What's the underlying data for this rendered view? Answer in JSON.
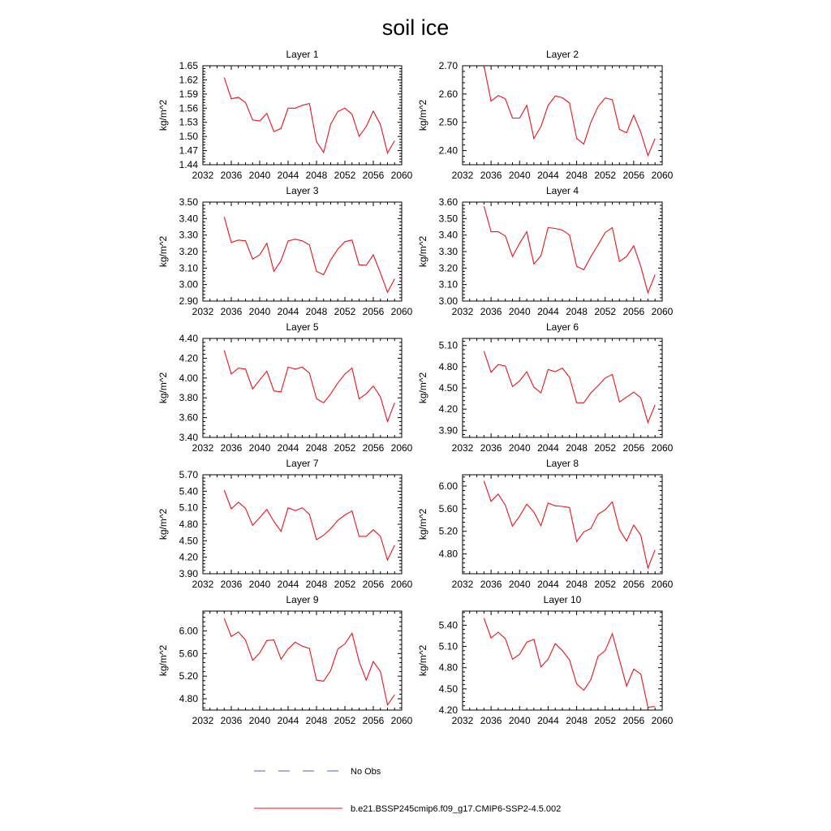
{
  "figure": {
    "title": "soil ice"
  },
  "legend": {
    "entries": [
      {
        "label": "No Obs",
        "color": "#4a5fd0",
        "style": "dashed"
      },
      {
        "label": "b.e21.BSSP245cmip6.f09_g17.CMIP6-SSP2-4.5.002",
        "color": "#e8141c",
        "style": "solid"
      }
    ]
  },
  "chart_data": [
    {
      "type": "line",
      "title": "Layer 1",
      "ylabel": "kg/m^2",
      "xlim": [
        2032,
        2060
      ],
      "xticks": [
        2032,
        2036,
        2040,
        2044,
        2048,
        2052,
        2056,
        2060
      ],
      "ylim": [
        1.44,
        1.65
      ],
      "yticks": [
        "1.44",
        "1.47",
        "1.50",
        "1.53",
        "1.56",
        "1.59",
        "1.62",
        "1.65"
      ],
      "series": [
        {
          "color": "#e8141c",
          "x": [
            2035,
            2036,
            2037,
            2038,
            2039,
            2040,
            2041,
            2042,
            2043,
            2044,
            2045,
            2046,
            2047,
            2048,
            2049,
            2050,
            2051,
            2052,
            2053,
            2054,
            2055,
            2056,
            2057,
            2058,
            2059
          ],
          "y": [
            1.625,
            1.58,
            1.583,
            1.572,
            1.535,
            1.533,
            1.549,
            1.51,
            1.517,
            1.56,
            1.56,
            1.566,
            1.57,
            1.489,
            1.466,
            1.526,
            1.553,
            1.56,
            1.547,
            1.5,
            1.521,
            1.554,
            1.525,
            1.465,
            1.491
          ]
        }
      ]
    },
    {
      "type": "line",
      "title": "Layer 2",
      "ylabel": "kg/m^2",
      "xlim": [
        2032,
        2060
      ],
      "xticks": [
        2032,
        2036,
        2040,
        2044,
        2048,
        2052,
        2056,
        2060
      ],
      "ylim": [
        2.35,
        2.7
      ],
      "yticks": [
        "2.40",
        "2.50",
        "2.60",
        "2.70"
      ],
      "series": [
        {
          "color": "#e8141c",
          "x": [
            2035,
            2036,
            2037,
            2038,
            2039,
            2040,
            2041,
            2042,
            2043,
            2044,
            2045,
            2046,
            2047,
            2048,
            2049,
            2050,
            2051,
            2052,
            2053,
            2054,
            2055,
            2056,
            2057,
            2058,
            2059
          ],
          "y": [
            2.7,
            2.575,
            2.595,
            2.583,
            2.515,
            2.515,
            2.56,
            2.443,
            2.485,
            2.56,
            2.593,
            2.587,
            2.568,
            2.443,
            2.423,
            2.5,
            2.555,
            2.586,
            2.58,
            2.475,
            2.463,
            2.525,
            2.465,
            2.382,
            2.442
          ]
        }
      ]
    },
    {
      "type": "line",
      "title": "Layer 3",
      "ylabel": "kg/m^2",
      "xlim": [
        2032,
        2060
      ],
      "xticks": [
        2032,
        2036,
        2040,
        2044,
        2048,
        2052,
        2056,
        2060
      ],
      "ylim": [
        2.9,
        3.5
      ],
      "yticks": [
        "2.90",
        "3.00",
        "3.10",
        "3.20",
        "3.30",
        "3.40",
        "3.50"
      ],
      "series": [
        {
          "color": "#e8141c",
          "x": [
            2035,
            2036,
            2037,
            2038,
            2039,
            2040,
            2041,
            2042,
            2043,
            2044,
            2045,
            2046,
            2047,
            2048,
            2049,
            2050,
            2051,
            2052,
            2053,
            2054,
            2055,
            2056,
            2057,
            2058,
            2059
          ],
          "y": [
            3.41,
            3.255,
            3.27,
            3.265,
            3.155,
            3.18,
            3.25,
            3.08,
            3.145,
            3.265,
            3.275,
            3.265,
            3.24,
            3.08,
            3.06,
            3.15,
            3.215,
            3.26,
            3.27,
            3.12,
            3.117,
            3.18,
            3.07,
            2.953,
            3.035
          ]
        }
      ]
    },
    {
      "type": "line",
      "title": "Layer 4",
      "ylabel": "kg/m^2",
      "xlim": [
        2032,
        2060
      ],
      "xticks": [
        2032,
        2036,
        2040,
        2044,
        2048,
        2052,
        2056,
        2060
      ],
      "ylim": [
        3.0,
        3.6
      ],
      "yticks": [
        "3.00",
        "3.10",
        "3.20",
        "3.30",
        "3.40",
        "3.50",
        "3.60"
      ],
      "series": [
        {
          "color": "#e8141c",
          "x": [
            2035,
            2036,
            2037,
            2038,
            2039,
            2040,
            2041,
            2042,
            2043,
            2044,
            2045,
            2046,
            2047,
            2048,
            2049,
            2050,
            2051,
            2052,
            2053,
            2054,
            2055,
            2056,
            2057,
            2058,
            2059
          ],
          "y": [
            3.575,
            3.42,
            3.42,
            3.395,
            3.27,
            3.35,
            3.42,
            3.225,
            3.275,
            3.445,
            3.44,
            3.43,
            3.4,
            3.21,
            3.19,
            3.27,
            3.34,
            3.415,
            3.445,
            3.24,
            3.27,
            3.335,
            3.21,
            3.05,
            3.16
          ]
        }
      ]
    },
    {
      "type": "line",
      "title": "Layer 5",
      "ylabel": "kg/m^2",
      "xlim": [
        2032,
        2060
      ],
      "xticks": [
        2032,
        2036,
        2040,
        2044,
        2048,
        2052,
        2056,
        2060
      ],
      "ylim": [
        3.4,
        4.4
      ],
      "yticks": [
        "3.40",
        "3.60",
        "3.80",
        "4.00",
        "4.20",
        "4.40"
      ],
      "series": [
        {
          "color": "#e8141c",
          "x": [
            2035,
            2036,
            2037,
            2038,
            2039,
            2040,
            2041,
            2042,
            2043,
            2044,
            2045,
            2046,
            2047,
            2048,
            2049,
            2050,
            2051,
            2052,
            2053,
            2054,
            2055,
            2056,
            2057,
            2058,
            2059
          ],
          "y": [
            4.28,
            4.04,
            4.1,
            4.09,
            3.89,
            3.98,
            4.07,
            3.87,
            3.86,
            4.11,
            4.09,
            4.11,
            4.05,
            3.79,
            3.75,
            3.84,
            3.95,
            4.04,
            4.1,
            3.79,
            3.84,
            3.92,
            3.81,
            3.56,
            3.75
          ]
        }
      ]
    },
    {
      "type": "line",
      "title": "Layer 6",
      "ylabel": "kg/m^2",
      "xlim": [
        2032,
        2060
      ],
      "xticks": [
        2032,
        2036,
        2040,
        2044,
        2048,
        2052,
        2056,
        2060
      ],
      "ylim": [
        3.8,
        5.2
      ],
      "yticks": [
        "3.90",
        "4.20",
        "4.50",
        "4.80",
        "5.10"
      ],
      "series": [
        {
          "color": "#e8141c",
          "x": [
            2035,
            2036,
            2037,
            2038,
            2039,
            2040,
            2041,
            2042,
            2043,
            2044,
            2045,
            2046,
            2047,
            2048,
            2049,
            2050,
            2051,
            2052,
            2053,
            2054,
            2055,
            2056,
            2057,
            2058,
            2059
          ],
          "y": [
            5.02,
            4.72,
            4.83,
            4.81,
            4.52,
            4.6,
            4.73,
            4.51,
            4.43,
            4.76,
            4.73,
            4.78,
            4.65,
            4.29,
            4.29,
            4.43,
            4.53,
            4.64,
            4.69,
            4.3,
            4.37,
            4.44,
            4.36,
            4.01,
            4.26
          ]
        }
      ]
    },
    {
      "type": "line",
      "title": "Layer 7",
      "ylabel": "kg/m^2",
      "xlim": [
        2032,
        2060
      ],
      "xticks": [
        2032,
        2036,
        2040,
        2044,
        2048,
        2052,
        2056,
        2060
      ],
      "ylim": [
        3.9,
        5.7
      ],
      "yticks": [
        "3.90",
        "4.20",
        "4.50",
        "4.80",
        "5.10",
        "5.40",
        "5.70"
      ],
      "series": [
        {
          "color": "#e8141c",
          "x": [
            2035,
            2036,
            2037,
            2038,
            2039,
            2040,
            2041,
            2042,
            2043,
            2044,
            2045,
            2046,
            2047,
            2048,
            2049,
            2050,
            2051,
            2052,
            2053,
            2054,
            2055,
            2056,
            2057,
            2058,
            2059
          ],
          "y": [
            5.42,
            5.08,
            5.2,
            5.09,
            4.78,
            4.92,
            5.07,
            4.85,
            4.67,
            5.1,
            5.05,
            5.1,
            4.98,
            4.52,
            4.6,
            4.72,
            4.87,
            4.97,
            5.04,
            4.58,
            4.58,
            4.7,
            4.58,
            4.15,
            4.42
          ]
        }
      ]
    },
    {
      "type": "line",
      "title": "Layer 8",
      "ylabel": "kg/m^2",
      "xlim": [
        2032,
        2060
      ],
      "xticks": [
        2032,
        2036,
        2040,
        2044,
        2048,
        2052,
        2056,
        2060
      ],
      "ylim": [
        4.45,
        6.2
      ],
      "yticks": [
        "4.80",
        "5.20",
        "5.60",
        "6.00"
      ],
      "series": [
        {
          "color": "#e8141c",
          "x": [
            2035,
            2036,
            2037,
            2038,
            2039,
            2040,
            2041,
            2042,
            2043,
            2044,
            2045,
            2046,
            2047,
            2048,
            2049,
            2050,
            2051,
            2052,
            2053,
            2054,
            2055,
            2056,
            2057,
            2058,
            2059
          ],
          "y": [
            6.09,
            5.73,
            5.86,
            5.66,
            5.29,
            5.47,
            5.68,
            5.54,
            5.3,
            5.7,
            5.65,
            5.64,
            5.62,
            5.02,
            5.19,
            5.25,
            5.5,
            5.58,
            5.72,
            5.23,
            5.03,
            5.31,
            5.13,
            4.55,
            4.87
          ]
        }
      ]
    },
    {
      "type": "line",
      "title": "Layer 9",
      "ylabel": "kg/m^2",
      "xlim": [
        2032,
        2060
      ],
      "xticks": [
        2032,
        2036,
        2040,
        2044,
        2048,
        2052,
        2056,
        2060
      ],
      "ylim": [
        4.6,
        6.35
      ],
      "yticks": [
        "4.80",
        "5.20",
        "5.60",
        "6.00"
      ],
      "series": [
        {
          "color": "#e8141c",
          "x": [
            2035,
            2036,
            2037,
            2038,
            2039,
            2040,
            2041,
            2042,
            2043,
            2044,
            2045,
            2046,
            2047,
            2048,
            2049,
            2050,
            2051,
            2052,
            2053,
            2054,
            2055,
            2056,
            2057,
            2058,
            2059
          ],
          "y": [
            6.22,
            5.9,
            5.98,
            5.84,
            5.48,
            5.61,
            5.83,
            5.84,
            5.5,
            5.68,
            5.8,
            5.73,
            5.69,
            5.13,
            5.11,
            5.3,
            5.68,
            5.77,
            5.96,
            5.46,
            5.13,
            5.46,
            5.28,
            4.69,
            4.87
          ]
        }
      ]
    },
    {
      "type": "line",
      "title": "Layer 10",
      "ylabel": "kg/m^2",
      "xlim": [
        2032,
        2060
      ],
      "xticks": [
        2032,
        2036,
        2040,
        2044,
        2048,
        2052,
        2056,
        2060
      ],
      "ylim": [
        4.2,
        5.6
      ],
      "yticks": [
        "4.20",
        "4.50",
        "4.80",
        "5.10",
        "5.40"
      ],
      "series": [
        {
          "color": "#e8141c",
          "x": [
            2035,
            2036,
            2037,
            2038,
            2039,
            2040,
            2041,
            2042,
            2043,
            2044,
            2045,
            2046,
            2047,
            2048,
            2049,
            2050,
            2051,
            2052,
            2053,
            2054,
            2055,
            2056,
            2057,
            2058,
            2059
          ],
          "y": [
            5.5,
            5.22,
            5.3,
            5.21,
            4.92,
            4.99,
            5.16,
            5.2,
            4.81,
            4.92,
            5.14,
            5.04,
            4.91,
            4.57,
            4.48,
            4.63,
            4.96,
            5.04,
            5.28,
            4.91,
            4.54,
            4.78,
            4.71,
            4.24,
            4.25
          ]
        }
      ]
    }
  ]
}
